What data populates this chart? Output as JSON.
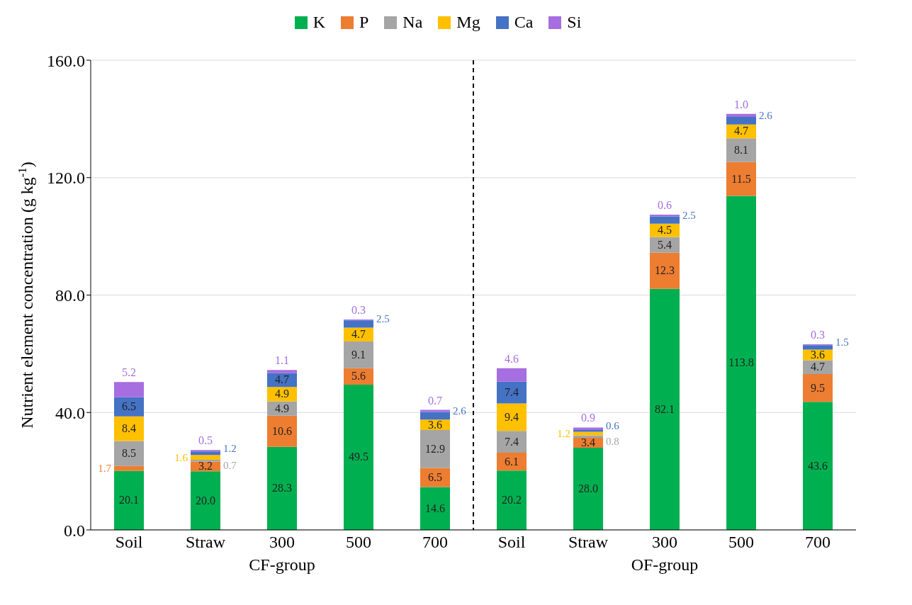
{
  "chart_data": {
    "type": "bar",
    "stacked": true,
    "ylabel": "Nutrient element concentration (g kg$^{-1}$)",
    "categories": [
      "Soil",
      "Straw",
      "300",
      "500",
      "700",
      "Soil",
      "Straw",
      "300",
      "500",
      "700"
    ],
    "series": [
      {
        "name": "K",
        "color": "#00b050",
        "values": [
          20.1,
          20.0,
          28.3,
          49.5,
          14.6,
          20.2,
          28.0,
          82.1,
          113.8,
          43.6
        ],
        "value_labels": [
          "20.1",
          "20.0",
          "28.3",
          "49.5",
          "14.6",
          "20.2",
          "28.0",
          "82.1",
          "113.8",
          "43.6"
        ]
      },
      {
        "name": "P",
        "color": "#ed7d31",
        "values": [
          1.7,
          3.2,
          10.6,
          5.6,
          6.5,
          6.1,
          3.4,
          12.3,
          11.5,
          9.5
        ],
        "value_labels": [
          "1.7",
          "3.2",
          "10.6",
          "5.6",
          "6.5",
          "6.1",
          "3.4",
          "12.3",
          "11.5",
          "9.5"
        ]
      },
      {
        "name": "Na",
        "color": "#a5a5a5",
        "values": [
          8.5,
          0.7,
          4.9,
          9.1,
          12.9,
          7.4,
          0.8,
          5.4,
          8.1,
          4.7
        ],
        "value_labels": [
          "8.5",
          "0.7",
          "4.9",
          "9.1",
          "12.9",
          "7.4",
          "0.8",
          "5.4",
          "8.1",
          "4.7"
        ]
      },
      {
        "name": "Mg",
        "color": "#ffc000",
        "values": [
          8.4,
          1.6,
          4.9,
          4.7,
          3.6,
          9.4,
          1.2,
          4.5,
          4.7,
          3.6
        ],
        "value_labels": [
          "8.4",
          "1.6",
          "4.9",
          "4.7",
          "3.6",
          "9.4",
          "1.2",
          "4.5",
          "4.7",
          "3.6"
        ]
      },
      {
        "name": "Ca",
        "color": "#4472c4",
        "values": [
          6.5,
          1.2,
          4.7,
          2.5,
          2.6,
          7.4,
          0.6,
          2.5,
          2.6,
          1.5
        ],
        "value_labels": [
          "6.5",
          "1.2",
          "4.7",
          "2.5",
          "2.6",
          "7.4",
          "0.6",
          "2.5",
          "2.6",
          "1.5"
        ]
      },
      {
        "name": "Si",
        "color": "#a66ee0",
        "values": [
          5.2,
          0.5,
          1.1,
          0.3,
          0.7,
          4.6,
          0.9,
          0.6,
          1.0,
          0.3
        ],
        "value_labels": [
          "5.2",
          "0.5",
          "1.1",
          "0.3",
          "0.7",
          "4.6",
          "0.9",
          "0.6",
          "1.0",
          "0.3"
        ]
      }
    ],
    "ylim": [
      0,
      160
    ],
    "yticks": [
      {
        "value": 0,
        "label": "0.0"
      },
      {
        "value": 40,
        "label": "40.0"
      },
      {
        "value": 80,
        "label": "80.0"
      },
      {
        "value": 120,
        "label": "120.0"
      },
      {
        "value": 160,
        "label": "160.0"
      }
    ],
    "grid": "y",
    "legend": "top",
    "annotations": [
      "CF-group",
      "OF-group"
    ]
  }
}
